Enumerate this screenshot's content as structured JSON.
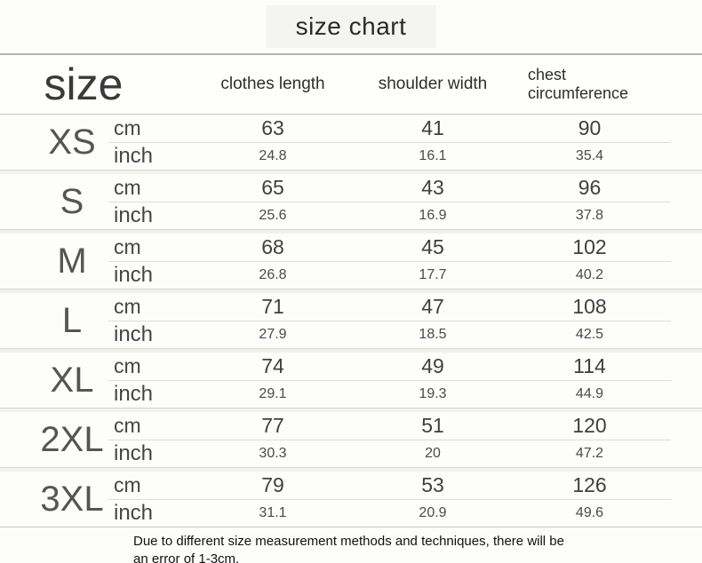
{
  "page": {
    "title": "size chart"
  },
  "table": {
    "size_header": "size",
    "columns": {
      "clothes_length": "clothes length",
      "shoulder_width": "shoulder width",
      "chest": "chest circumference"
    },
    "units": {
      "cm": "cm",
      "inch": "inch"
    },
    "rows": [
      {
        "size": "XS",
        "cm": {
          "clothes_length": "63",
          "shoulder_width": "41",
          "chest": "90"
        },
        "inch": {
          "clothes_length": "24.8",
          "shoulder_width": "16.1",
          "chest": "35.4"
        }
      },
      {
        "size": "S",
        "cm": {
          "clothes_length": "65",
          "shoulder_width": "43",
          "chest": "96"
        },
        "inch": {
          "clothes_length": "25.6",
          "shoulder_width": "16.9",
          "chest": "37.8"
        }
      },
      {
        "size": "M",
        "cm": {
          "clothes_length": "68",
          "shoulder_width": "45",
          "chest": "102"
        },
        "inch": {
          "clothes_length": "26.8",
          "shoulder_width": "17.7",
          "chest": "40.2"
        }
      },
      {
        "size": "L",
        "cm": {
          "clothes_length": "71",
          "shoulder_width": "47",
          "chest": "108"
        },
        "inch": {
          "clothes_length": "27.9",
          "shoulder_width": "18.5",
          "chest": "42.5"
        }
      },
      {
        "size": "XL",
        "cm": {
          "clothes_length": "74",
          "shoulder_width": "49",
          "chest": "114"
        },
        "inch": {
          "clothes_length": "29.1",
          "shoulder_width": "19.3",
          "chest": "44.9"
        }
      },
      {
        "size": "2XL",
        "cm": {
          "clothes_length": "77",
          "shoulder_width": "51",
          "chest": "120"
        },
        "inch": {
          "clothes_length": "30.3",
          "shoulder_width": "20",
          "chest": "47.2"
        }
      },
      {
        "size": "3XL",
        "cm": {
          "clothes_length": "79",
          "shoulder_width": "53",
          "chest": "126"
        },
        "inch": {
          "clothes_length": "31.1",
          "shoulder_width": "20.9",
          "chest": "49.6"
        }
      }
    ]
  },
  "footer": {
    "note": "Due to different size measurement methods and techniques, there will be an error of 1-3cm."
  },
  "colors": {
    "divider_line": "#b4b7aa",
    "row_line": "#c9c9c5",
    "text_primary": "#3f3f3f",
    "text_secondary": "#555555",
    "note_text": "#111111",
    "title_chip_bg": "#f4f4f1"
  },
  "chart_data": {
    "type": "table",
    "title": "size chart",
    "columns": [
      "size",
      "unit",
      "clothes length",
      "shoulder width",
      "chest circumference"
    ],
    "rows": [
      [
        "XS",
        "cm",
        63,
        41,
        90
      ],
      [
        "XS",
        "inch",
        24.8,
        16.1,
        35.4
      ],
      [
        "S",
        "cm",
        65,
        43,
        96
      ],
      [
        "S",
        "inch",
        25.6,
        16.9,
        37.8
      ],
      [
        "M",
        "cm",
        68,
        45,
        102
      ],
      [
        "M",
        "inch",
        26.8,
        17.7,
        40.2
      ],
      [
        "L",
        "cm",
        71,
        47,
        108
      ],
      [
        "L",
        "inch",
        27.9,
        18.5,
        42.5
      ],
      [
        "XL",
        "cm",
        74,
        49,
        114
      ],
      [
        "XL",
        "inch",
        29.1,
        19.3,
        44.9
      ],
      [
        "2XL",
        "cm",
        77,
        51,
        120
      ],
      [
        "2XL",
        "inch",
        30.3,
        20,
        47.2
      ],
      [
        "3XL",
        "cm",
        79,
        53,
        126
      ],
      [
        "3XL",
        "inch",
        31.1,
        20.9,
        49.6
      ]
    ],
    "note": "Due to different size measurement methods and techniques, there will be an error of 1-3cm."
  }
}
